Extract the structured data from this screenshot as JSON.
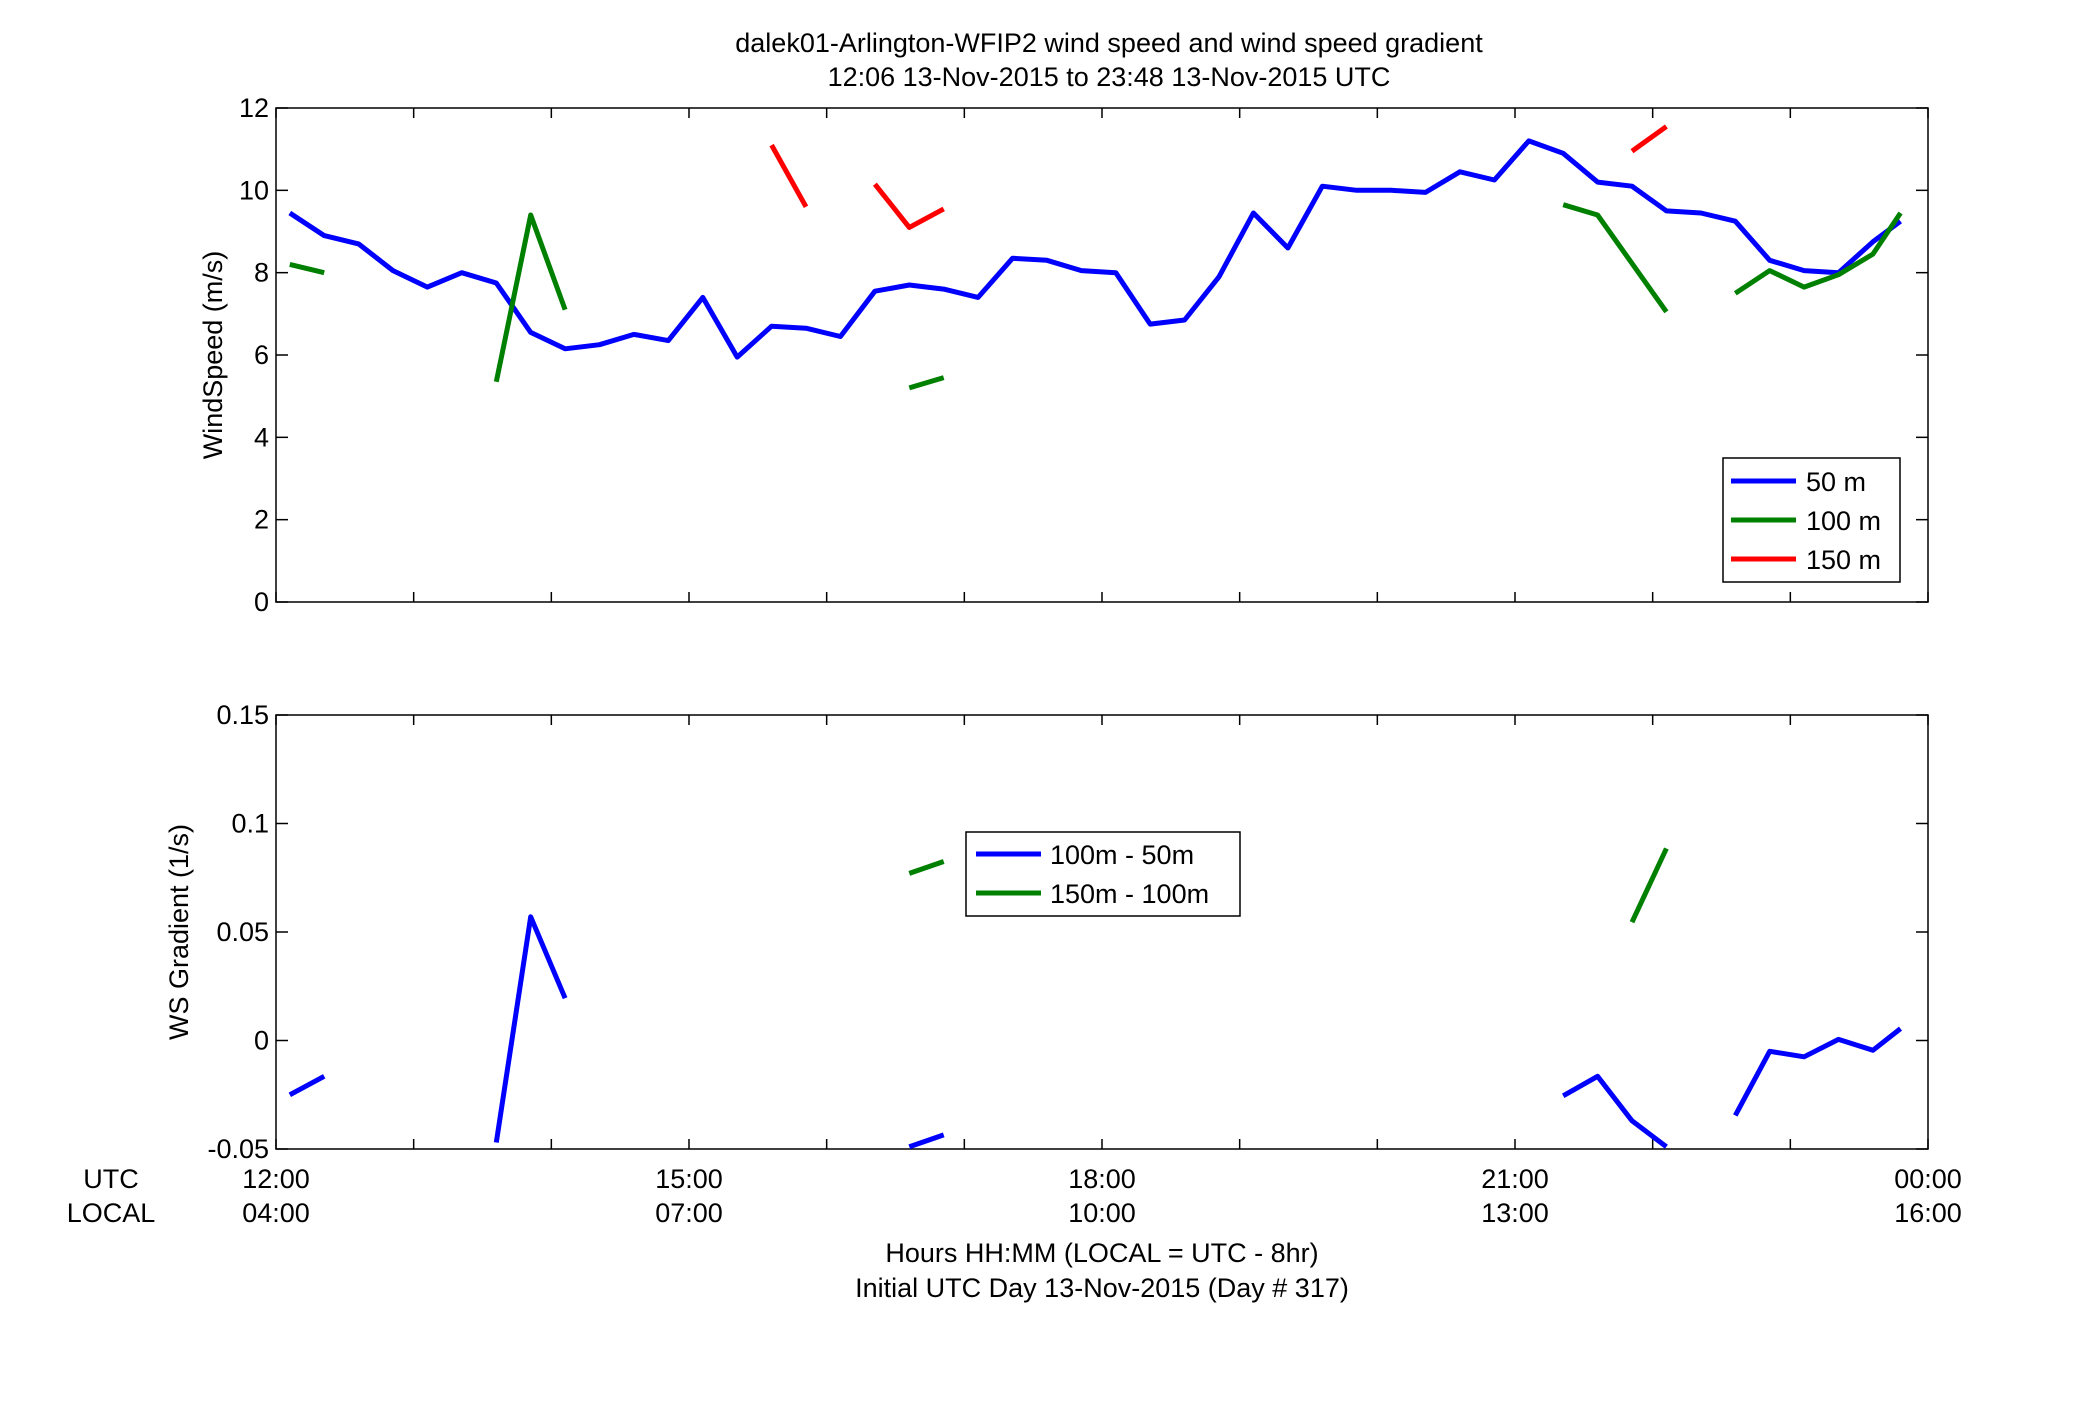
{
  "title_line1": "dalek01-Arlington-WFIP2  wind speed and wind speed gradient",
  "title_line2": "12:06 13-Nov-2015 to 23:48 13-Nov-2015  UTC",
  "row_label_utc": "UTC",
  "row_label_local": "LOCAL",
  "xlabel_line1": "Hours HH:MM  (LOCAL = UTC - 8hr)",
  "xlabel_line2": "Initial UTC Day 13-Nov-2015 (Day # 317)",
  "x_ticks_utc": [
    "12:00",
    "15:00",
    "18:00",
    "21:00",
    "00:00"
  ],
  "x_ticks_local": [
    "04:00",
    "07:00",
    "10:00",
    "13:00",
    "16:00"
  ],
  "chart_data": [
    {
      "type": "line",
      "ylabel": "WindSpeed (m/s)",
      "xlim": [
        12,
        24
      ],
      "ylim": [
        0,
        12
      ],
      "y_ticks": [
        "0",
        "2",
        "4",
        "6",
        "8",
        "10",
        "12"
      ],
      "legend_position": "bottom-right",
      "colors": {
        "50 m": "#0000ff",
        "100 m": "#008000",
        "150 m": "#ff0000"
      },
      "series": [
        {
          "name": "50 m",
          "segments": [
            [
              [
                12.1,
                9.45
              ],
              [
                12.35,
                8.9
              ],
              [
                12.6,
                8.7
              ],
              [
                12.85,
                8.05
              ],
              [
                13.1,
                7.65
              ],
              [
                13.35,
                8.0
              ],
              [
                13.6,
                7.75
              ],
              [
                13.85,
                6.55
              ],
              [
                14.1,
                6.15
              ],
              [
                14.35,
                6.25
              ],
              [
                14.6,
                6.5
              ],
              [
                14.85,
                6.35
              ],
              [
                15.1,
                7.4
              ],
              [
                15.35,
                5.95
              ],
              [
                15.6,
                6.7
              ],
              [
                15.85,
                6.65
              ],
              [
                16.1,
                6.45
              ],
              [
                16.35,
                7.55
              ],
              [
                16.6,
                7.7
              ],
              [
                16.85,
                7.6
              ],
              [
                17.1,
                7.4
              ],
              [
                17.35,
                8.35
              ],
              [
                17.6,
                8.3
              ],
              [
                17.85,
                8.05
              ],
              [
                18.1,
                8.0
              ],
              [
                18.35,
                6.75
              ],
              [
                18.6,
                6.85
              ],
              [
                18.85,
                7.9
              ],
              [
                19.1,
                9.45
              ],
              [
                19.35,
                8.6
              ],
              [
                19.6,
                10.1
              ],
              [
                19.85,
                10.0
              ],
              [
                20.1,
                10.0
              ],
              [
                20.35,
                9.95
              ],
              [
                20.6,
                10.45
              ],
              [
                20.85,
                10.25
              ],
              [
                21.1,
                11.2
              ],
              [
                21.35,
                10.9
              ],
              [
                21.6,
                10.2
              ],
              [
                21.85,
                10.1
              ],
              [
                22.1,
                9.5
              ],
              [
                22.35,
                9.45
              ],
              [
                22.6,
                9.25
              ],
              [
                22.85,
                8.3
              ],
              [
                23.1,
                8.05
              ],
              [
                23.35,
                8.0
              ],
              [
                23.6,
                8.75
              ],
              [
                23.8,
                9.25
              ]
            ]
          ]
        },
        {
          "name": "100 m",
          "segments": [
            [
              [
                12.1,
                8.2
              ],
              [
                12.35,
                8.0
              ]
            ],
            [
              [
                13.6,
                5.35
              ],
              [
                13.85,
                9.4
              ],
              [
                14.1,
                7.1
              ]
            ],
            [
              [
                16.6,
                5.2
              ],
              [
                16.85,
                5.45
              ]
            ],
            [
              [
                21.35,
                9.65
              ],
              [
                21.6,
                9.4
              ],
              [
                22.1,
                7.05
              ]
            ],
            [
              [
                22.6,
                7.5
              ],
              [
                22.85,
                8.05
              ],
              [
                23.1,
                7.65
              ],
              [
                23.35,
                7.95
              ],
              [
                23.6,
                8.45
              ],
              [
                23.8,
                9.45
              ]
            ]
          ]
        },
        {
          "name": "150 m",
          "segments": [
            [
              [
                15.6,
                11.1
              ],
              [
                15.85,
                9.6
              ]
            ],
            [
              [
                16.35,
                10.15
              ],
              [
                16.6,
                9.1
              ],
              [
                16.85,
                9.55
              ]
            ],
            [
              [
                21.85,
                10.95
              ],
              [
                22.1,
                11.55
              ]
            ]
          ]
        }
      ]
    },
    {
      "type": "line",
      "ylabel": "WS Gradient (1/s)",
      "xlim": [
        12,
        24
      ],
      "ylim": [
        -0.05,
        0.15
      ],
      "y_ticks": [
        "-0.05",
        "0",
        "0.05",
        "0.1",
        "0.15"
      ],
      "legend_position": "top-center",
      "colors": {
        "100m - 50m": "#0000ff",
        "150m - 100m": "#008000"
      },
      "series": [
        {
          "name": "100m - 50m",
          "segments": [
            [
              [
                12.1,
                -0.025
              ],
              [
                12.35,
                -0.0165
              ]
            ],
            [
              [
                13.6,
                -0.047
              ],
              [
                13.85,
                0.057
              ],
              [
                14.1,
                0.0195
              ]
            ],
            [
              [
                16.6,
                -0.049
              ],
              [
                16.85,
                -0.0435
              ]
            ],
            [
              [
                21.35,
                -0.0255
              ],
              [
                21.6,
                -0.0165
              ],
              [
                21.85,
                -0.037
              ],
              [
                22.1,
                -0.049
              ]
            ],
            [
              [
                22.6,
                -0.0345
              ],
              [
                22.85,
                -0.005
              ],
              [
                23.1,
                -0.0075
              ],
              [
                23.35,
                0.0005
              ],
              [
                23.6,
                -0.0045
              ],
              [
                23.8,
                0.0055
              ]
            ]
          ]
        },
        {
          "name": "150m - 100m",
          "segments": [
            [
              [
                16.6,
                0.077
              ],
              [
                16.85,
                0.0825
              ]
            ],
            [
              [
                21.85,
                0.0545
              ],
              [
                22.1,
                0.0885
              ]
            ]
          ]
        }
      ]
    }
  ]
}
